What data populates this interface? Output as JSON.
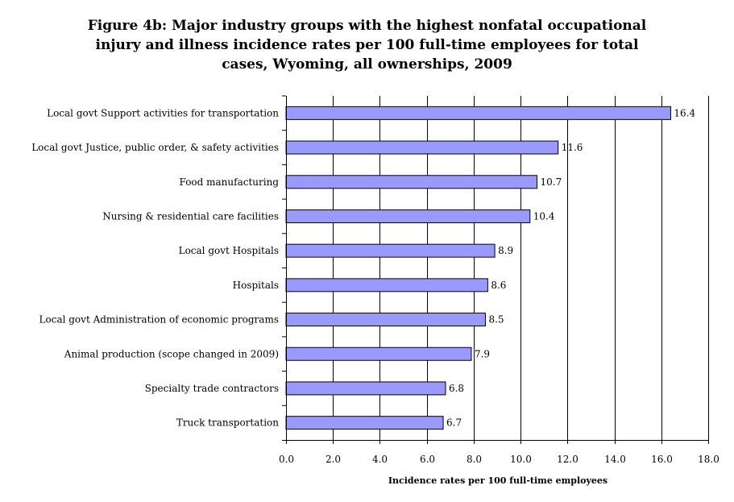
{
  "title_lines": [
    "Figure 4b: Major industry groups with the highest nonfatal occupational",
    "injury and illness incidence rates per 100 full-time employees for total",
    "cases, Wyoming, all ownerships, 2009"
  ],
  "chart_data": {
    "type": "bar",
    "orientation": "horizontal",
    "title": "Figure 4b: Major industry groups with the highest nonfatal occupational injury and illness incidence rates per 100 full-time employees for total cases, Wyoming, all ownerships, 2009",
    "categories": [
      "Local govt Support activities for transportation",
      "Local govt Justice, public order, & safety activities",
      "Food manufacturing",
      "Nursing & residential care facilities",
      "Local govt Hospitals",
      "Hospitals",
      "Local govt Administration of economic programs",
      "Animal production (scope changed in 2009)",
      "Specialty trade contractors",
      "Truck transportation"
    ],
    "values": [
      16.4,
      11.6,
      10.7,
      10.4,
      8.9,
      8.6,
      8.5,
      7.9,
      6.8,
      6.7
    ],
    "value_labels": [
      "16.4",
      "11.6",
      "10.7",
      "10.4",
      "8.9",
      "8.6",
      "8.5",
      "7.9",
      "6.8",
      "6.7"
    ],
    "xlabel": "Incidence rates per 100 full-time employees",
    "ylabel": "",
    "xlim": [
      0,
      18
    ],
    "xticks": [
      0,
      2,
      4,
      6,
      8,
      10,
      12,
      14,
      16,
      18
    ],
    "xtick_labels": [
      "0.0",
      "2.0",
      "4.0",
      "6.0",
      "8.0",
      "10.0",
      "12.0",
      "14.0",
      "16.0",
      "18.0"
    ],
    "grid": "vertical",
    "legend": "none",
    "colors": {
      "bar_fill": "#9999ff",
      "bar_stroke": "#000000",
      "grid": "#000000"
    }
  }
}
